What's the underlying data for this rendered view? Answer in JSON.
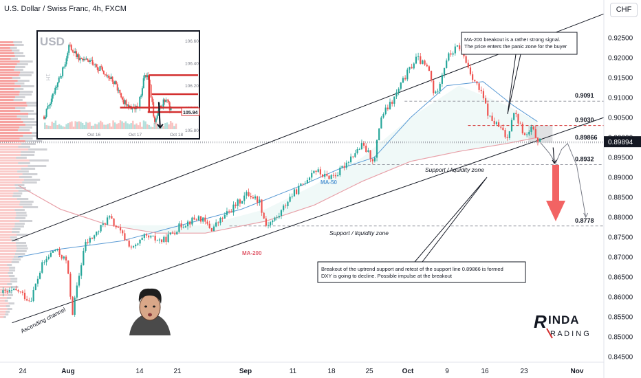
{
  "header": {
    "title": "U.S. Dollar / Swiss Franc, 4h, FXCM",
    "currency": "CHF"
  },
  "colors": {
    "up": "#26a69a",
    "down": "#ef5350",
    "ma50": "#5b9bd5",
    "ma200": "#e8a0a8",
    "arrow": "#f04848",
    "level": "#d32f2f",
    "dashed": "#9598a1"
  },
  "chart_data": {
    "type": "candlestick",
    "symbol": "USDCHF",
    "timeframe": "4h",
    "y_ticks": [
      "0.92500",
      "0.92000",
      "0.91500",
      "0.91000",
      "0.90500",
      "0.90000",
      "0.89500",
      "0.89000",
      "0.88500",
      "0.88000",
      "0.87500",
      "0.87000",
      "0.86500",
      "0.86000",
      "0.85500",
      "0.85000",
      "0.84500"
    ],
    "ylim": [
      0.8445,
      0.9294
    ],
    "last_price": "0.89894",
    "x_ticks": [
      "24",
      "Aug",
      "14",
      "21",
      "Sep",
      "11",
      "18",
      "25",
      "Oct",
      "9",
      "16",
      "23",
      "Nov"
    ],
    "close_path": [
      {
        "x": 0.5,
        "y": 0.861
      },
      {
        "x": 3,
        "y": 0.8615
      },
      {
        "x": 5,
        "y": 0.859
      },
      {
        "x": 7,
        "y": 0.868
      },
      {
        "x": 9,
        "y": 0.872
      },
      {
        "x": 11,
        "y": 0.869
      },
      {
        "x": 12,
        "y": 0.856
      },
      {
        "x": 14,
        "y": 0.873
      },
      {
        "x": 16,
        "y": 0.876
      },
      {
        "x": 18,
        "y": 0.88
      },
      {
        "x": 20,
        "y": 0.876
      },
      {
        "x": 22,
        "y": 0.872
      },
      {
        "x": 24,
        "y": 0.875
      },
      {
        "x": 27,
        "y": 0.874
      },
      {
        "x": 30,
        "y": 0.878
      },
      {
        "x": 33,
        "y": 0.88
      },
      {
        "x": 35,
        "y": 0.877
      },
      {
        "x": 37,
        "y": 0.88
      },
      {
        "x": 39,
        "y": 0.883
      },
      {
        "x": 41,
        "y": 0.886
      },
      {
        "x": 43,
        "y": 0.884
      },
      {
        "x": 44,
        "y": 0.878
      },
      {
        "x": 46,
        "y": 0.88
      },
      {
        "x": 48,
        "y": 0.885
      },
      {
        "x": 50,
        "y": 0.888
      },
      {
        "x": 52,
        "y": 0.892
      },
      {
        "x": 54,
        "y": 0.89
      },
      {
        "x": 56,
        "y": 0.891
      },
      {
        "x": 58,
        "y": 0.895
      },
      {
        "x": 60,
        "y": 0.898
      },
      {
        "x": 62,
        "y": 0.894
      },
      {
        "x": 63,
        "y": 0.905
      },
      {
        "x": 65,
        "y": 0.909
      },
      {
        "x": 67,
        "y": 0.915
      },
      {
        "x": 69,
        "y": 0.92
      },
      {
        "x": 71,
        "y": 0.917
      },
      {
        "x": 72,
        "y": 0.91
      },
      {
        "x": 74,
        "y": 0.92
      },
      {
        "x": 76,
        "y": 0.923
      },
      {
        "x": 78,
        "y": 0.916
      },
      {
        "x": 80,
        "y": 0.91
      },
      {
        "x": 81,
        "y": 0.905
      },
      {
        "x": 83,
        "y": 0.902
      },
      {
        "x": 84,
        "y": 0.8995
      },
      {
        "x": 85,
        "y": 0.907
      },
      {
        "x": 87,
        "y": 0.9
      },
      {
        "x": 88,
        "y": 0.902
      },
      {
        "x": 89.5,
        "y": 0.8987
      }
    ],
    "ma50": [
      {
        "x": 3,
        "y": 0.87
      },
      {
        "x": 10,
        "y": 0.872
      },
      {
        "x": 20,
        "y": 0.874
      },
      {
        "x": 30,
        "y": 0.878
      },
      {
        "x": 40,
        "y": 0.882
      },
      {
        "x": 50,
        "y": 0.888
      },
      {
        "x": 56,
        "y": 0.892
      },
      {
        "x": 62,
        "y": 0.895
      },
      {
        "x": 68,
        "y": 0.905
      },
      {
        "x": 74,
        "y": 0.913
      },
      {
        "x": 80,
        "y": 0.914
      },
      {
        "x": 85,
        "y": 0.908
      },
      {
        "x": 89,
        "y": 0.904
      }
    ],
    "ma200": [
      {
        "x": 3,
        "y": 0.888
      },
      {
        "x": 10,
        "y": 0.882
      },
      {
        "x": 18,
        "y": 0.878
      },
      {
        "x": 26,
        "y": 0.876
      },
      {
        "x": 34,
        "y": 0.876
      },
      {
        "x": 44,
        "y": 0.879
      },
      {
        "x": 52,
        "y": 0.883
      },
      {
        "x": 60,
        "y": 0.889
      },
      {
        "x": 68,
        "y": 0.894
      },
      {
        "x": 76,
        "y": 0.8965
      },
      {
        "x": 84,
        "y": 0.8985
      },
      {
        "x": 89,
        "y": 0.9
      }
    ],
    "levels": [
      {
        "value": 0.9091,
        "label": "0.9091",
        "style": "dashed",
        "color": "gray"
      },
      {
        "value": 0.903,
        "label": "0.9030",
        "style": "dashed",
        "color": "red"
      },
      {
        "value": 0.89866,
        "label": "0.89866",
        "style": "dotted",
        "color": "gray"
      },
      {
        "value": 0.8932,
        "label": "0.8932",
        "style": "dashed",
        "color": "gray"
      },
      {
        "value": 0.8778,
        "label": "0.8778",
        "style": "dashed",
        "color": "gray"
      }
    ],
    "channel": {
      "lower": [
        {
          "x": 2,
          "y": 0.8535
        },
        {
          "x": 100,
          "y": 0.905
        }
      ],
      "upper": [
        {
          "x": 2,
          "y": 0.874
        },
        {
          "x": 100,
          "y": 0.931
        }
      ]
    },
    "panic_zone": {
      "from": 0.89866,
      "to": 0.903
    },
    "projection": [
      {
        "x": 89.5,
        "y": 0.8987
      },
      {
        "x": 91,
        "y": 0.896
      },
      {
        "x": 92,
        "y": 0.8935
      },
      {
        "x": 93,
        "y": 0.897
      },
      {
        "x": 94,
        "y": 0.8985
      },
      {
        "x": 95.5,
        "y": 0.893
      },
      {
        "x": 97,
        "y": 0.88
      }
    ],
    "annotations": {
      "box_top": "MA-200 breakout is a rather strong signal.\nThe price enters the panic zone for the buyer",
      "box_bottom": "Breakout of the uptrend support and retest of the support line 0.89866 is formed\nDXY is going to decline. Possible impulse at the breakout",
      "support_zone_1": "Support / liquidity zone",
      "support_zone_2": "Support / liquidity zone",
      "ma50_label": "MA-50",
      "ma200_label": "MA-200",
      "channel_label": "Ascending channel"
    },
    "inset": {
      "title": "USD",
      "side_label": "1H",
      "y_ticks": [
        "106.60",
        "106.40",
        "106.20",
        "106.00",
        "105.80"
      ],
      "x_ticks": [
        "Oct 16",
        "Oct 17",
        "Oct 18"
      ],
      "price_tag": "105.94",
      "ylim": [
        105.78,
        106.66
      ],
      "close_path": [
        {
          "x": 0,
          "y": 105.92
        },
        {
          "x": 8,
          "y": 106.15
        },
        {
          "x": 14,
          "y": 106.35
        },
        {
          "x": 18,
          "y": 106.55
        },
        {
          "x": 25,
          "y": 106.45
        },
        {
          "x": 35,
          "y": 106.4
        },
        {
          "x": 45,
          "y": 106.3
        },
        {
          "x": 52,
          "y": 106.2
        },
        {
          "x": 58,
          "y": 106.05
        },
        {
          "x": 63,
          "y": 106.0
        },
        {
          "x": 68,
          "y": 105.98
        },
        {
          "x": 72,
          "y": 106.25
        },
        {
          "x": 75,
          "y": 106.3
        },
        {
          "x": 78,
          "y": 106.05
        },
        {
          "x": 80,
          "y": 105.85
        },
        {
          "x": 84,
          "y": 106.0
        },
        {
          "x": 88,
          "y": 106.08
        },
        {
          "x": 92,
          "y": 105.96
        }
      ],
      "red_lines": [
        {
          "x1": 76,
          "y1": 106.29,
          "x2": 100,
          "y2": 106.29
        },
        {
          "x1": 78,
          "y1": 106.12,
          "x2": 100,
          "y2": 106.12
        },
        {
          "x1": 55,
          "y1": 106.0,
          "x2": 100,
          "y2": 106.0
        },
        {
          "x1": 75,
          "y1": 105.96,
          "x2": 100,
          "y2": 105.96
        }
      ]
    },
    "logo": "LINDA TRADING",
    "grid": false
  }
}
